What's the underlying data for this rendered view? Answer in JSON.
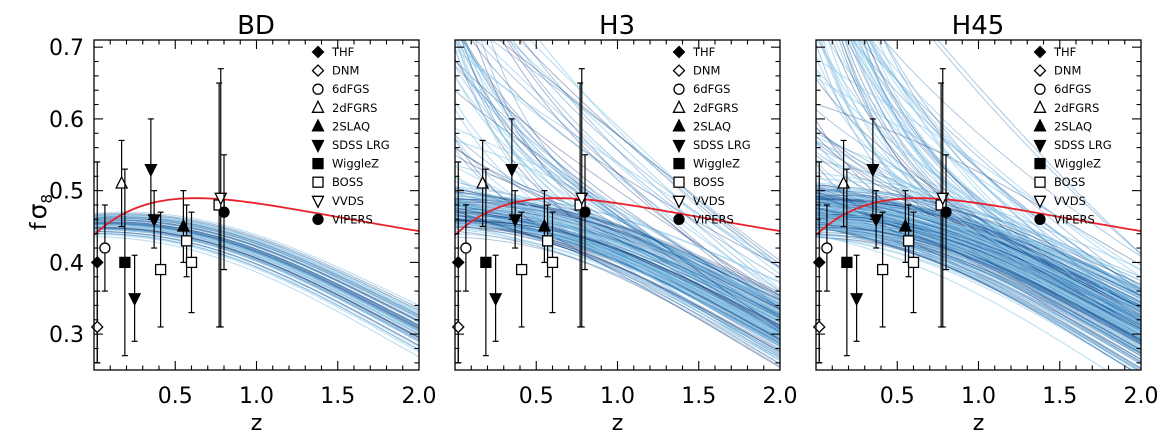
{
  "chart_data": {
    "type": "scatter",
    "ylabel_f": "f",
    "ylabel_sigma": "σ",
    "ylabel_sub": "8",
    "xlabel": "z",
    "xlim": [
      0.0,
      2.0
    ],
    "ylim": [
      0.25,
      0.71
    ],
    "xticks": [
      0.5,
      1.0,
      1.5,
      2.0
    ],
    "xtick_labels": [
      "0.5",
      "1.0",
      "1.5",
      "2.0"
    ],
    "yticks": [
      0.3,
      0.4,
      0.5,
      0.6,
      0.7
    ],
    "ytick_labels": [
      "0.3",
      "0.4",
      "0.5",
      "0.6",
      "0.7"
    ],
    "colors": {
      "reference_curve": "#e8202a",
      "band_dark": "#0a2a6e",
      "band_light": "#8cc8ea",
      "markers": "#000000"
    },
    "panels": [
      {
        "title": "BD",
        "band": "narrow"
      },
      {
        "title": "H3",
        "band": "medium"
      },
      {
        "title": "H45",
        "band": "wide"
      }
    ],
    "series": [
      {
        "name": "THF",
        "marker": "diamond-filled",
        "points": [
          {
            "x": 0.02,
            "y": 0.4,
            "err": 0.14
          }
        ]
      },
      {
        "name": "DNM",
        "marker": "diamond-open",
        "points": [
          {
            "x": 0.02,
            "y": 0.31,
            "err": 0.05
          }
        ]
      },
      {
        "name": "6dFGS",
        "marker": "circle-open",
        "points": [
          {
            "x": 0.067,
            "y": 0.42,
            "err": 0.06
          }
        ]
      },
      {
        "name": "2dFGRS",
        "marker": "triangle-up-open",
        "points": [
          {
            "x": 0.17,
            "y": 0.51,
            "err": 0.06
          }
        ]
      },
      {
        "name": "2SLAQ",
        "marker": "triangle-up-filled",
        "points": [
          {
            "x": 0.55,
            "y": 0.45,
            "err": 0.05
          }
        ]
      },
      {
        "name": "SDSS LRG",
        "marker": "triangle-down-filled",
        "points": [
          {
            "x": 0.25,
            "y": 0.35,
            "err": 0.06
          },
          {
            "x": 0.35,
            "y": 0.53,
            "err": 0.07
          },
          {
            "x": 0.37,
            "y": 0.46,
            "err": 0.04
          }
        ]
      },
      {
        "name": "WiggleZ",
        "marker": "square-filled",
        "points": [
          {
            "x": 0.19,
            "y": 0.4,
            "err": 0.13
          }
        ]
      },
      {
        "name": "BOSS",
        "marker": "square-open",
        "points": [
          {
            "x": 0.41,
            "y": 0.39,
            "err": 0.08
          },
          {
            "x": 0.57,
            "y": 0.43,
            "err": 0.05
          },
          {
            "x": 0.6,
            "y": 0.4,
            "err": 0.07
          },
          {
            "x": 0.77,
            "y": 0.48,
            "err": 0.17
          }
        ]
      },
      {
        "name": "VVDS",
        "marker": "triangle-down-open",
        "points": [
          {
            "x": 0.78,
            "y": 0.49,
            "err": 0.18
          }
        ]
      },
      {
        "name": "VIPERS",
        "marker": "circle-filled",
        "points": [
          {
            "x": 0.8,
            "y": 0.47,
            "err": 0.08
          }
        ]
      }
    ]
  }
}
